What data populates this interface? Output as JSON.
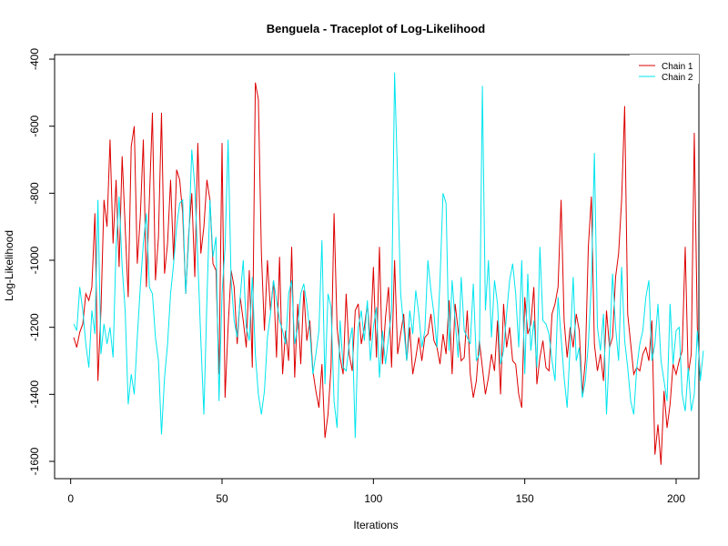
{
  "chart_data": {
    "type": "line",
    "title": "Benguela - Traceplot of Log-Likelihood",
    "xlabel": "Iterations",
    "ylabel": "Log-Likelihood",
    "xlim": [
      1,
      200
    ],
    "ylim": [
      -1650,
      -400
    ],
    "x_ticks": [
      0,
      50,
      100,
      150,
      200
    ],
    "y_ticks": [
      -1600,
      -1400,
      -1200,
      -1000,
      -800,
      -600,
      -400
    ],
    "legend_position": "top-right",
    "series": [
      {
        "name": "Chain 1",
        "color": "#dd0000",
        "values": [
          -1230,
          -1260,
          -1215,
          -1190,
          -1100,
          -1120,
          -1080,
          -860,
          -1360,
          -1150,
          -820,
          -900,
          -640,
          -950,
          -760,
          -1020,
          -690,
          -900,
          -1110,
          -660,
          -600,
          -1010,
          -870,
          -640,
          -1080,
          -820,
          -560,
          -1060,
          -930,
          -560,
          -1040,
          -950,
          -760,
          -1000,
          -730,
          -760,
          -860,
          -1100,
          -920,
          -800,
          -1050,
          -650,
          -980,
          -900,
          -760,
          -820,
          -1010,
          -1030,
          -1340,
          -650,
          -1410,
          -1200,
          -1030,
          -1080,
          -1250,
          -1110,
          -1180,
          -1260,
          -1030,
          -1320,
          -470,
          -520,
          -980,
          -1210,
          -1000,
          -1150,
          -1060,
          -1290,
          -990,
          -1340,
          -1210,
          -1300,
          -960,
          -1350,
          -1130,
          -1310,
          -1090,
          -1240,
          -1180,
          -1330,
          -1390,
          -1440,
          -1310,
          -1530,
          -1460,
          -1320,
          -860,
          -1200,
          -1290,
          -1340,
          -1100,
          -1280,
          -1330,
          -1150,
          -1130,
          -1250,
          -1200,
          -1130,
          -1240,
          -1020,
          -1290,
          -960,
          -1310,
          -1170,
          -1080,
          -1320,
          -1000,
          -1280,
          -1220,
          -1160,
          -1300,
          -1200,
          -1340,
          -1290,
          -1230,
          -1300,
          -1230,
          -1220,
          -1160,
          -1240,
          -1260,
          -1310,
          -1220,
          -1280,
          -1120,
          -1340,
          -1130,
          -1210,
          -1300,
          -1290,
          -1150,
          -1340,
          -1410,
          -1360,
          -1240,
          -1320,
          -1400,
          -1350,
          -1280,
          -1330,
          -1180,
          -1400,
          -1130,
          -1260,
          -1200,
          -1300,
          -1310,
          -1400,
          -1440,
          -1110,
          -1220,
          -1190,
          -1080,
          -1370,
          -1290,
          -1240,
          -1320,
          -1330,
          -1160,
          -1130,
          -1080,
          -820,
          -1180,
          -1290,
          -1200,
          -1260,
          -1160,
          -1210,
          -1400,
          -1300,
          -960,
          -810,
          -1250,
          -1330,
          -1280,
          -1360,
          -1150,
          -1260,
          -1230,
          -1050,
          -980,
          -820,
          -540,
          -1160,
          -1250,
          -1340,
          -1320,
          -1330,
          -1280,
          -1260,
          -1300,
          -1180,
          -1580,
          -1490,
          -1610,
          -1390,
          -1500,
          -1430,
          -1310,
          -1340,
          -1300,
          -1270,
          -960,
          -1340,
          -1280,
          -620,
          -1200,
          -1350
        ]
      },
      {
        "name": "Chain 2",
        "color": "#00e5ee",
        "values": [
          -1190,
          -1210,
          -1080,
          -1150,
          -1250,
          -1320,
          -1150,
          -1220,
          -820,
          -1280,
          -1190,
          -1250,
          -1200,
          -1290,
          -960,
          -810,
          -1020,
          -1150,
          -1430,
          -1340,
          -1400,
          -1230,
          -1080,
          -950,
          -860,
          -1080,
          -1100,
          -1230,
          -1300,
          -1520,
          -1350,
          -1250,
          -1100,
          -1010,
          -900,
          -830,
          -820,
          -1100,
          -940,
          -670,
          -780,
          -1000,
          -1240,
          -1460,
          -1120,
          -820,
          -990,
          -930,
          -1420,
          -1100,
          -960,
          -640,
          -1060,
          -1180,
          -1230,
          -1110,
          -1000,
          -1200,
          -1240,
          -1050,
          -1280,
          -1400,
          -1460,
          -1390,
          -1230,
          -1160,
          -1060,
          -1120,
          -1180,
          -1210,
          -1250,
          -1100,
          -1060,
          -1250,
          -1200,
          -1100,
          -1070,
          -1130,
          -1210,
          -1340,
          -1280,
          -1210,
          -940,
          -1370,
          -1100,
          -1140,
          -1420,
          -1500,
          -1180,
          -1320,
          -1330,
          -1250,
          -1200,
          -1530,
          -1200,
          -1150,
          -1240,
          -1120,
          -1300,
          -1200,
          -1140,
          -1350,
          -1210,
          -1310,
          -1230,
          -1150,
          -440,
          -760,
          -1100,
          -1200,
          -1300,
          -1150,
          -1220,
          -1090,
          -1160,
          -1260,
          -1210,
          -1000,
          -1090,
          -1160,
          -1260,
          -1060,
          -800,
          -830,
          -1270,
          -1060,
          -1180,
          -1290,
          -1050,
          -1210,
          -1230,
          -1250,
          -1070,
          -1300,
          -1280,
          -480,
          -1150,
          -1000,
          -1230,
          -1060,
          -1130,
          -1310,
          -1270,
          -1160,
          -1060,
          -1010,
          -1100,
          -1260,
          -1000,
          -1340,
          -1040,
          -1270,
          -1180,
          -1320,
          -960,
          -1180,
          -1190,
          -1220,
          -1300,
          -1360,
          -1110,
          -1230,
          -1350,
          -1440,
          -1250,
          -1050,
          -1300,
          -1260,
          -1410,
          -1360,
          -1250,
          -1070,
          -680,
          -1200,
          -1270,
          -1160,
          -1460,
          -1260,
          -1040,
          -1200,
          -1300,
          -1020,
          -1240,
          -1320,
          -1420,
          -1460,
          -1320,
          -1250,
          -1210,
          -1110,
          -1060,
          -1300,
          -1250,
          -1130,
          -1300,
          -1360,
          -1420,
          -1130,
          -1310,
          -1210,
          -1200,
          -1400,
          -1450,
          -1320,
          -1450,
          -1400,
          -1210,
          -1360,
          -1270
        ]
      }
    ]
  }
}
